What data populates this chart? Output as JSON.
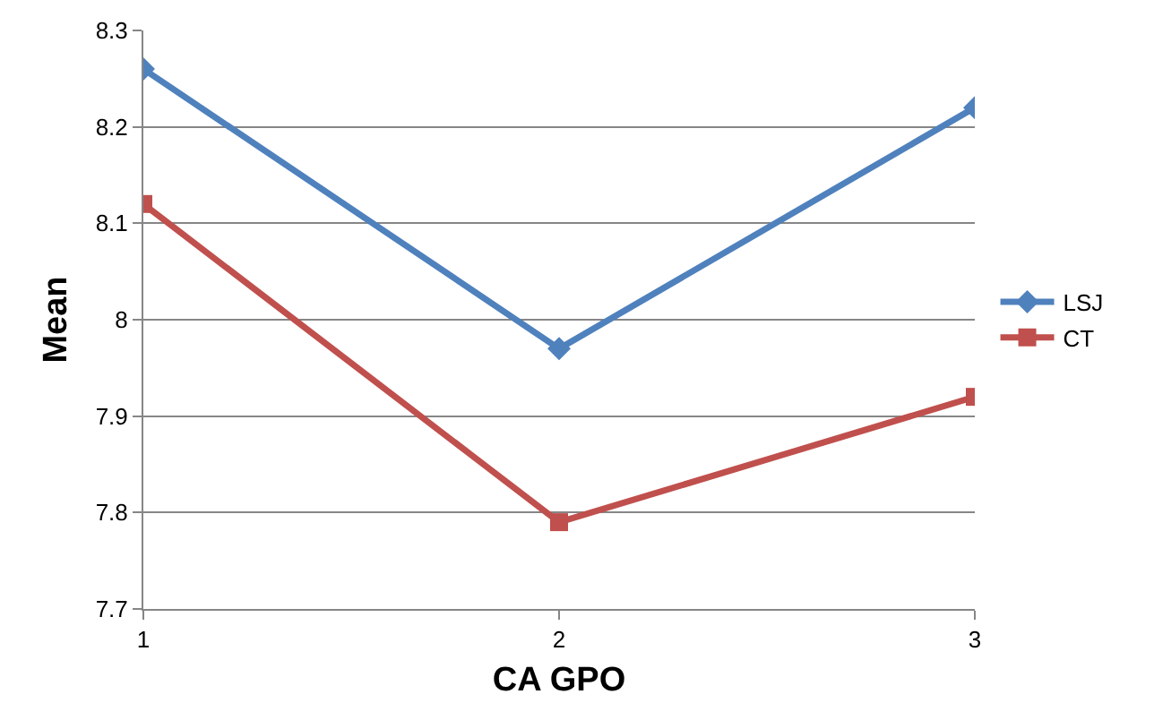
{
  "chart_data": {
    "type": "line",
    "xlabel": "CA GPO",
    "ylabel": "Mean",
    "x": [
      1,
      2,
      3
    ],
    "xlim": [
      1,
      3
    ],
    "xticks": [
      1,
      2,
      3
    ],
    "ylim": [
      7.7,
      8.3
    ],
    "yticks": [
      7.7,
      7.8,
      7.9,
      8,
      8.1,
      8.2,
      8.3
    ],
    "grid": "y",
    "legend": "right",
    "line_style": "solid",
    "series": [
      {
        "name": "LSJ",
        "color": "#4f81bd",
        "marker": "diamond",
        "values": [
          8.26,
          7.97,
          8.22
        ]
      },
      {
        "name": "CT",
        "color": "#c0504d",
        "marker": "square",
        "values": [
          8.12,
          7.79,
          7.92
        ]
      }
    ]
  }
}
